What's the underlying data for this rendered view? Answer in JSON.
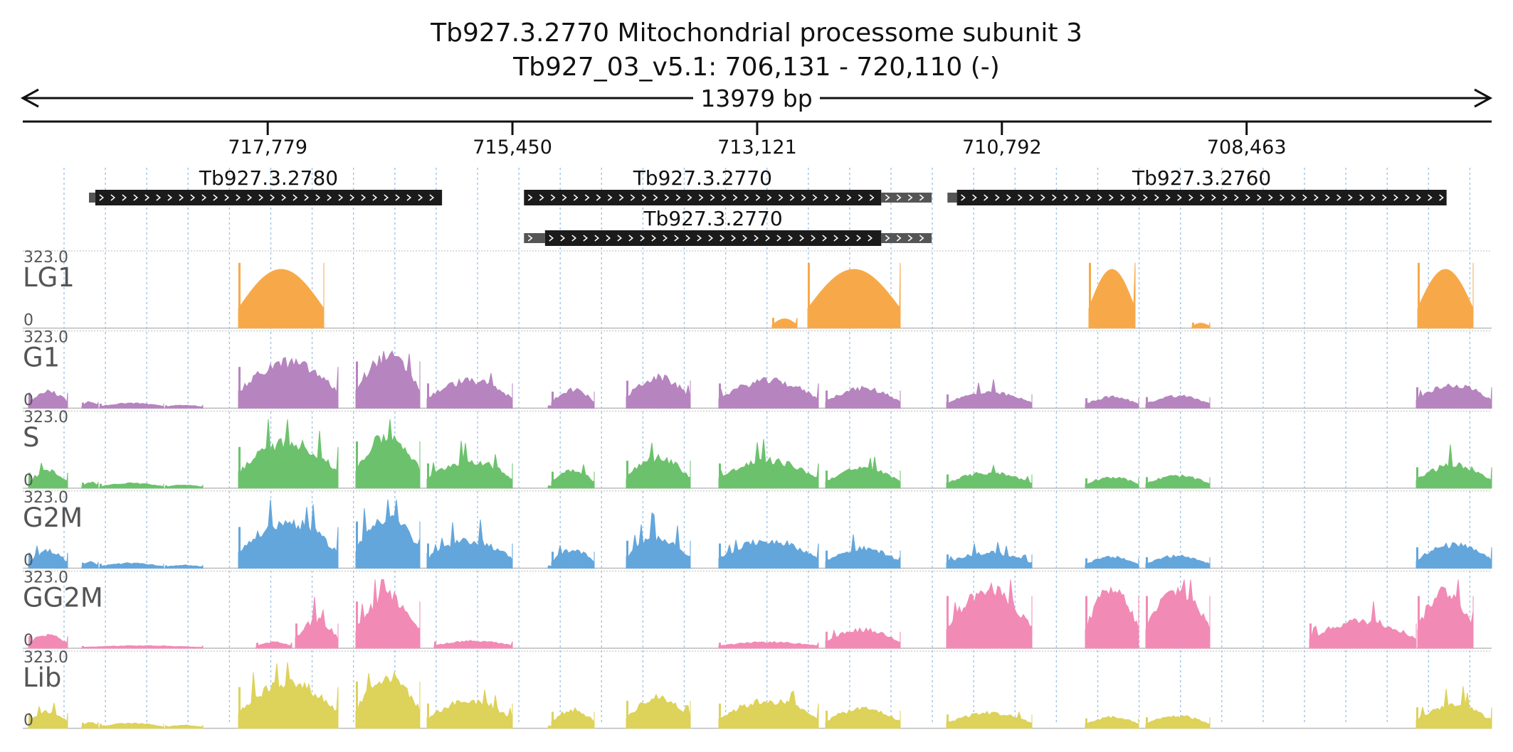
{
  "header": {
    "title": "Tb927.3.2770  Mitochondrial processome subunit 3",
    "location": "Tb927_03_v5.1: 706,131 - 720,110 (-)",
    "span_label": "13979 bp"
  },
  "region": {
    "start": 706131,
    "end": 720110,
    "strand": "-"
  },
  "ruler": {
    "ticks": [
      {
        "pos": 717779,
        "label": "717,779"
      },
      {
        "pos": 715450,
        "label": "715,450"
      },
      {
        "pos": 713121,
        "label": "713,121"
      },
      {
        "pos": 710792,
        "label": "710,792"
      },
      {
        "pos": 708463,
        "label": "708,463"
      }
    ]
  },
  "genes": [
    {
      "name": "Tb927.3.2780",
      "row": 0,
      "start": 719420,
      "end": 716120,
      "utr_start": 719480,
      "utr_end": 719420
    },
    {
      "name": "Tb927.3.2770",
      "row": 0,
      "start": 715340,
      "end": 711940,
      "utr_start": 711940,
      "utr_end": 711460
    },
    {
      "name": "Tb927.3.2760",
      "row": 0,
      "start": 711220,
      "end": 706560,
      "utr_start": 711310,
      "utr_end": 711220
    },
    {
      "name": "Tb927.3.2770",
      "row": 1,
      "start": 715140,
      "end": 711940,
      "utr_start": 715340,
      "utr_end": 715140,
      "utr2_start": 711940,
      "utr2_end": 711460
    }
  ],
  "tracks": [
    {
      "name": "LG1",
      "max_label": "323.0",
      "zero_label": "0",
      "color": "#f7a949"
    },
    {
      "name": "G1",
      "max_label": "323.0",
      "zero_label": "0",
      "color": "#b684bf"
    },
    {
      "name": "S",
      "max_label": "323.0",
      "zero_label": "0",
      "color": "#6cc26c"
    },
    {
      "name": "G2M",
      "max_label": "323.0",
      "zero_label": "0",
      "color": "#63a6dc"
    },
    {
      "name": "GG2M",
      "max_label": "323.0",
      "zero_label": "0",
      "color": "#f28ab6"
    },
    {
      "name": "Lib",
      "max_label": "323.0",
      "zero_label": "0",
      "color": "#ddd25a"
    }
  ],
  "colors": {
    "gene_block": "#1b1b1b",
    "utr_block": "#555555",
    "grid": "#9cc3e8",
    "track_line": "#bbbbbb",
    "clip_mark": "#c0392b"
  }
}
